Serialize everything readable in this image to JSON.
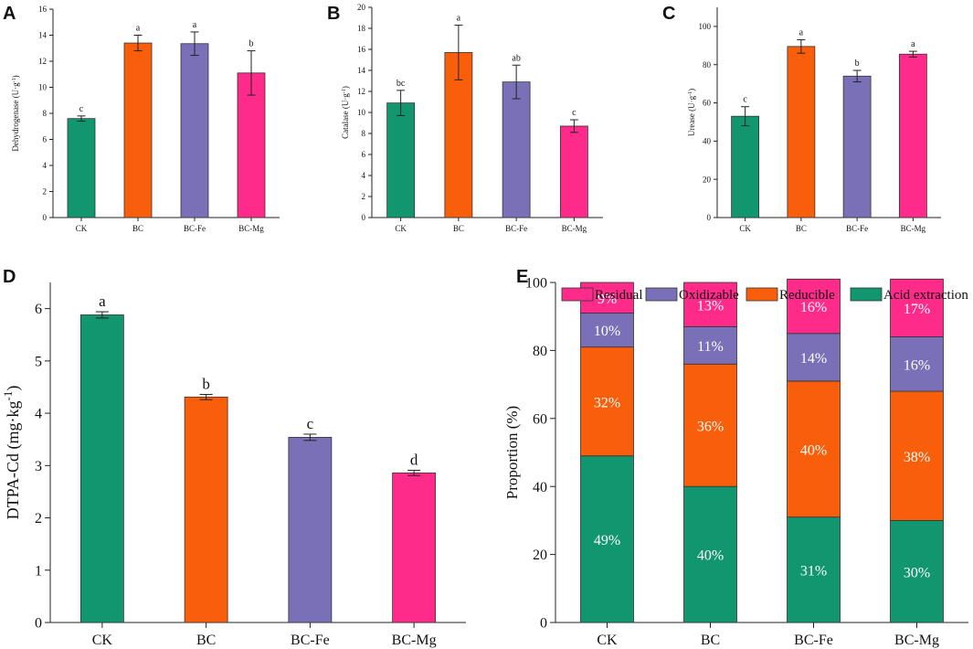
{
  "colors": {
    "CK": "#12966f",
    "BC": "#f95f0b",
    "BC-Fe": "#7a70b8",
    "BC-Mg": "#ff2b8a",
    "axis": "#222222",
    "text": "#111111"
  },
  "chart_data": [
    {
      "panel": "A",
      "type": "bar",
      "categories": [
        "CK",
        "BC",
        "BC-Fe",
        "BC-Mg"
      ],
      "values": [
        7.6,
        13.4,
        13.35,
        11.1
      ],
      "errors": [
        0.2,
        0.6,
        0.9,
        1.7
      ],
      "letters": [
        "c",
        "a",
        "a",
        "b"
      ],
      "ylabel": "Dehydrogenase (U·g",
      "ylabel_sup": "-1",
      "ylabel_tail": ")",
      "ylim": [
        0,
        16
      ],
      "yticks": [
        "0",
        "2",
        "4",
        "6",
        "8",
        "10",
        "12",
        "14",
        "16"
      ]
    },
    {
      "panel": "B",
      "type": "bar",
      "categories": [
        "CK",
        "BC",
        "BC-Fe",
        "BC-Mg"
      ],
      "values": [
        10.9,
        15.7,
        12.9,
        8.7
      ],
      "errors": [
        1.2,
        2.6,
        1.6,
        0.6
      ],
      "letters": [
        "bc",
        "a",
        "ab",
        "c"
      ],
      "ylabel": "Catalase (U·g",
      "ylabel_sup": "-1",
      "ylabel_tail": ")",
      "ylim": [
        0,
        20
      ],
      "yticks": [
        "0",
        "2",
        "4",
        "6",
        "8",
        "10",
        "12",
        "14",
        "16",
        "18",
        "20"
      ]
    },
    {
      "panel": "C",
      "type": "bar",
      "categories": [
        "CK",
        "BC",
        "BC-Fe",
        "BC-Mg"
      ],
      "values": [
        53,
        89.5,
        74,
        85.5
      ],
      "errors": [
        5,
        3.5,
        3,
        1.5
      ],
      "letters": [
        "c",
        "a",
        "b",
        "a"
      ],
      "ylabel": "Urease (U·g",
      "ylabel_sup": "-1",
      "ylabel_tail": ")",
      "ylim": [
        0,
        110
      ],
      "yticks": [
        "0",
        "20",
        "40",
        "60",
        "80",
        "100"
      ]
    },
    {
      "panel": "D",
      "type": "bar",
      "categories": [
        "CK",
        "BC",
        "BC-Fe",
        "BC-Mg"
      ],
      "values": [
        5.88,
        4.31,
        3.54,
        2.86
      ],
      "errors": [
        0.06,
        0.05,
        0.06,
        0.05
      ],
      "letters": [
        "a",
        "b",
        "c",
        "d"
      ],
      "ylabel": "DTPA-Cd (mg·kg",
      "ylabel_sup": "-1",
      "ylabel_tail": ")",
      "ylim": [
        0,
        6.5
      ],
      "yticks": [
        "0",
        "1",
        "2",
        "3",
        "4",
        "5",
        "6"
      ]
    },
    {
      "panel": "E",
      "type": "bar",
      "stacked": true,
      "categories": [
        "CK",
        "BC",
        "BC-Fe",
        "BC-Mg"
      ],
      "ylabel": "Proportion (%)",
      "ylim": [
        0,
        100
      ],
      "yticks": [
        "0",
        "20",
        "40",
        "60",
        "80",
        "100"
      ],
      "series": [
        {
          "name": "Acid extraction",
          "values": [
            49,
            40,
            31,
            30
          ],
          "labels": [
            "49%",
            "40%",
            "31%",
            "30%"
          ],
          "color": "#12966f"
        },
        {
          "name": "Reducible",
          "values": [
            32,
            36,
            40,
            38
          ],
          "labels": [
            "32%",
            "36%",
            "40%",
            "38%"
          ],
          "color": "#f95f0b"
        },
        {
          "name": "Oxidizable",
          "values": [
            10,
            11,
            14,
            16
          ],
          "labels": [
            "10%",
            "11%",
            "14%",
            "16%"
          ],
          "color": "#7a70b8"
        },
        {
          "name": "Residual",
          "values": [
            9,
            13,
            16,
            17
          ],
          "labels": [
            "9%",
            "13%",
            "16%",
            "17%"
          ],
          "color": "#ff2b8a"
        }
      ],
      "legend_order": [
        "Residual",
        "Oxidizable",
        "Reducible",
        "Acid extraction"
      ]
    }
  ]
}
